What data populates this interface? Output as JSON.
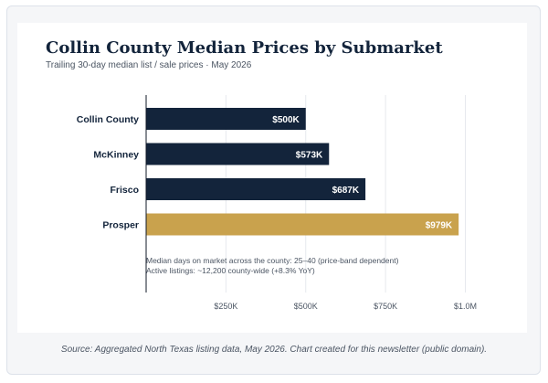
{
  "chart_data": {
    "type": "bar",
    "orientation": "horizontal",
    "title": "Collin County Median Prices by Submarket",
    "subtitle": "Trailing 30-day median list / sale prices · May 2026",
    "categories": [
      "Collin County",
      "McKinney",
      "Frisco",
      "Prosper"
    ],
    "values": [
      500,
      573,
      687,
      979
    ],
    "value_labels": [
      "$500K",
      "$573K",
      "$687K",
      "$979K"
    ],
    "bar_colors": [
      "#13243b",
      "#13243b",
      "#13243b",
      "#c9a24d"
    ],
    "xlim": [
      0,
      1000
    ],
    "xticks": [
      250,
      500,
      750,
      1000
    ],
    "xtick_labels": [
      "$250K",
      "$500K",
      "$750K",
      "$1.0M"
    ],
    "grid": true,
    "annotations": [
      "Median days on market across the county: 25–40 (price-band dependent)",
      "Active listings: ~12,200 county-wide (+8.3% YoY)"
    ]
  },
  "footer": {
    "source": "Source: Aggregated North Texas listing data, May 2026. Chart created for this newsletter (public domain)."
  },
  "colors": {
    "primary": "#13243b",
    "highlight": "#c9a24d",
    "grid": "#e6e9ee"
  }
}
